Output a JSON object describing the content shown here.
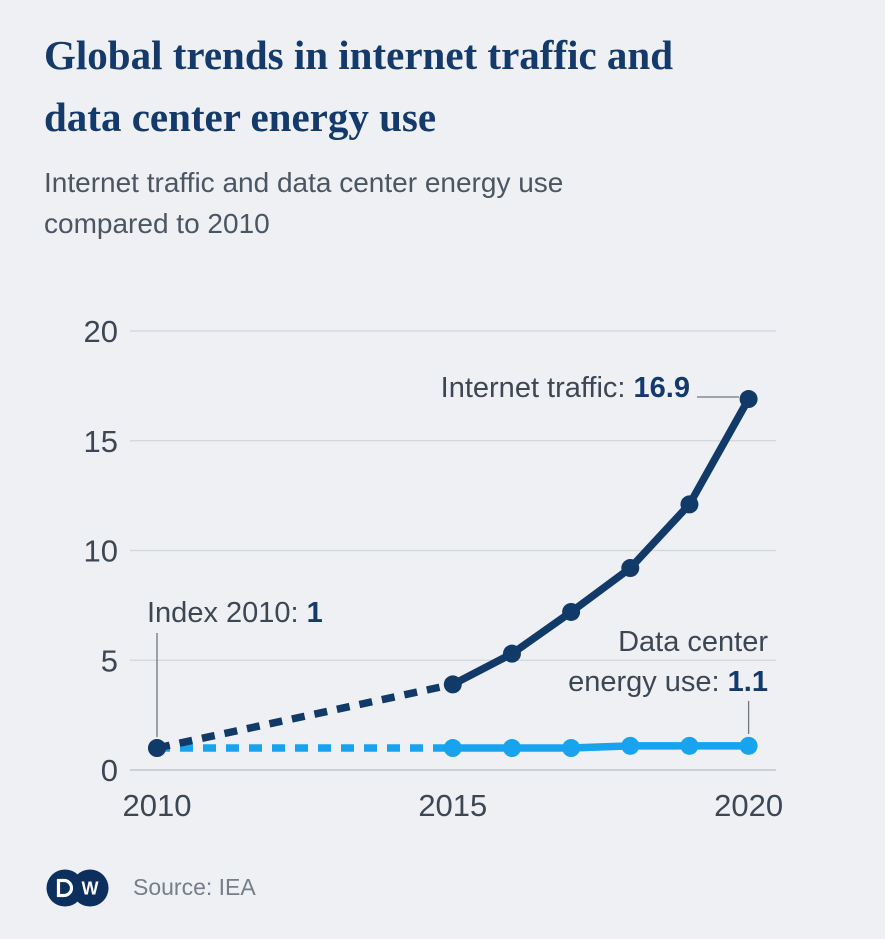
{
  "header": {
    "title_lines": [
      "Global trends in internet traffic and",
      "data center energy use"
    ],
    "subtitle": "Internet traffic and data center energy use compared to 2010"
  },
  "footer": {
    "source": "Source: IEA",
    "logo": "DW",
    "logo_letter_w": "W"
  },
  "colors": {
    "background": "#eef0f3",
    "navy": "#123a68",
    "light_blue": "#18a3ef",
    "grid": "#d2d5da",
    "text_dark": "#3d4753",
    "text_gray": "#757e89"
  },
  "chart_data": {
    "type": "line",
    "title": "Global trends in internet traffic and data center energy use",
    "subtitle": "Internet traffic and data center energy use compared to 2010",
    "x": [
      2010,
      2015,
      2016,
      2017,
      2018,
      2019,
      2020
    ],
    "series": [
      {
        "name": "Internet traffic",
        "slug": "internet-traffic",
        "color": "#123a68",
        "values": [
          1,
          3.9,
          5.3,
          7.2,
          9.2,
          12.1,
          16.9
        ],
        "dashed_until_index": 1
      },
      {
        "name": "Data center energy use",
        "slug": "data-center-energy-use",
        "color": "#18a3ef",
        "values": [
          1,
          1,
          1,
          1,
          1.1,
          1.1,
          1.1
        ],
        "dashed_until_index": 1
      }
    ],
    "yticks": [
      0,
      5,
      10,
      15,
      20
    ],
    "xticks": [
      2010,
      2015,
      2020
    ],
    "ylim": [
      0,
      20
    ],
    "xlim": [
      2010,
      2020
    ],
    "grid": true,
    "legend_position": "inline-annotations",
    "annotations": {
      "index2010": {
        "label": "Index 2010: ",
        "value": "1"
      },
      "traffic": {
        "label": "Internet traffic: ",
        "value": "16.9"
      },
      "datacenter": {
        "line1": "Data center",
        "label2": "energy use: ",
        "value": "1.1"
      }
    },
    "source": "Source: IEA"
  }
}
